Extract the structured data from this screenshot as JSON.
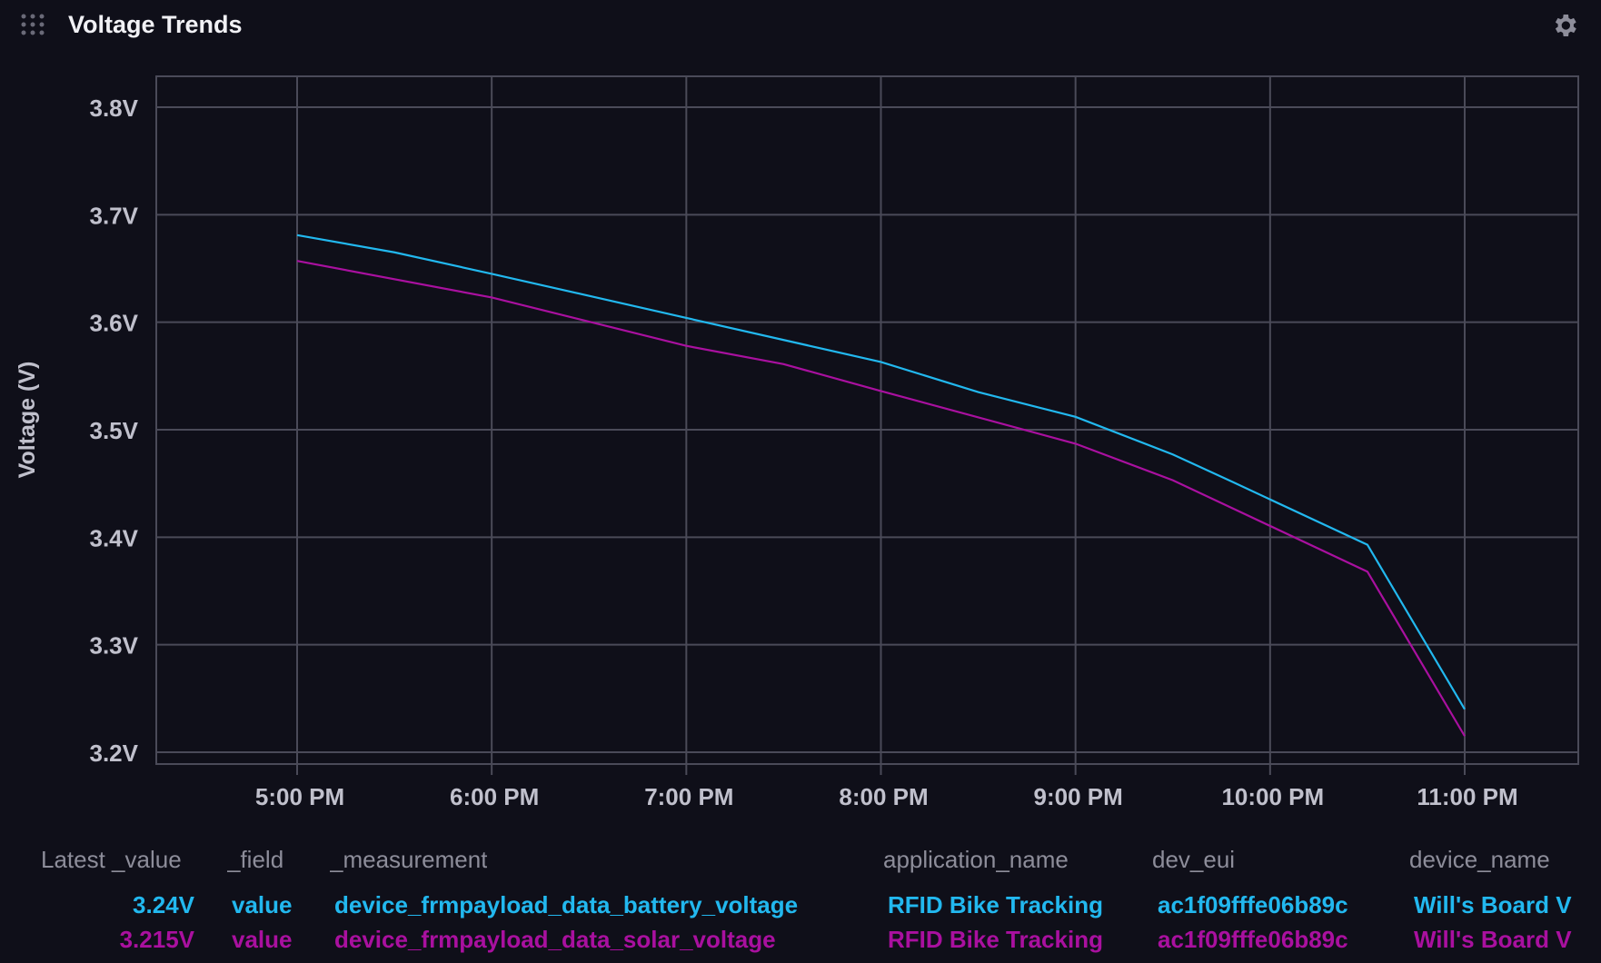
{
  "header": {
    "title": "Voltage Trends",
    "drag_icon": "drag-grip-icon",
    "settings_icon": "gear-icon"
  },
  "chart_data": {
    "type": "line",
    "title": "Voltage Trends",
    "ylabel": "Voltage (V)",
    "xlabel": "",
    "ylim": [
      3.2,
      3.8
    ],
    "y_ticks": [
      "3.8V",
      "3.7V",
      "3.6V",
      "3.5V",
      "3.4V",
      "3.3V",
      "3.2V"
    ],
    "y_tick_values": [
      3.8,
      3.7,
      3.6,
      3.5,
      3.4,
      3.3,
      3.2
    ],
    "x_ticks": [
      "5:00 PM",
      "6:00 PM",
      "7:00 PM",
      "8:00 PM",
      "9:00 PM",
      "10:00 PM",
      "11:00 PM"
    ],
    "x_tick_hours": [
      17,
      18,
      19,
      20,
      21,
      22,
      23
    ],
    "xlim_hours": [
      16.28,
      24.0
    ],
    "grid": true,
    "series": [
      {
        "name": "device_frmpayload_data_battery_voltage",
        "color": "#22b8ef",
        "x": [
          "5:00 PM",
          "5:30 PM",
          "6:00 PM",
          "7:00 PM",
          "8:00 PM",
          "8:30 PM",
          "9:00 PM",
          "9:30 PM",
          "9:45 PM",
          "10:30 PM",
          "11:00 PM"
        ],
        "x_hours": [
          17,
          17.5,
          18,
          19,
          20,
          20.5,
          21,
          21.5,
          21.8,
          22.5,
          23
        ],
        "values": [
          3.681,
          3.665,
          3.645,
          3.604,
          3.563,
          3.535,
          3.512,
          3.477,
          3.452,
          3.393,
          3.24
        ]
      },
      {
        "name": "device_frmpayload_data_solar_voltage",
        "color": "#a9109f",
        "x": [
          "5:00 PM",
          "6:00 PM",
          "7:00 PM",
          "7:30 PM",
          "8:00 PM",
          "9:00 PM",
          "9:30 PM",
          "10:30 PM",
          "11:00 PM"
        ],
        "x_hours": [
          17,
          18,
          19,
          19.5,
          20,
          21,
          21.5,
          22.5,
          23
        ],
        "values": [
          3.657,
          3.623,
          3.578,
          3.561,
          3.536,
          3.487,
          3.453,
          3.368,
          3.215
        ]
      }
    ]
  },
  "legend": {
    "headers": [
      "Latest _value",
      "_field",
      "_measurement",
      "application_name",
      "dev_eui",
      "device_name"
    ],
    "rows": [
      {
        "color": "#22b8ef",
        "cells": [
          "3.24V",
          "value",
          "device_frmpayload_data_battery_voltage",
          "RFID Bike Tracking",
          "ac1f09fffe06b89c",
          "Will's Board V"
        ]
      },
      {
        "color": "#a9109f",
        "cells": [
          "3.215V",
          "value",
          "device_frmpayload_data_solar_voltage",
          "RFID Bike Tracking",
          "ac1f09fffe06b89c",
          "Will's Board V"
        ]
      }
    ]
  }
}
